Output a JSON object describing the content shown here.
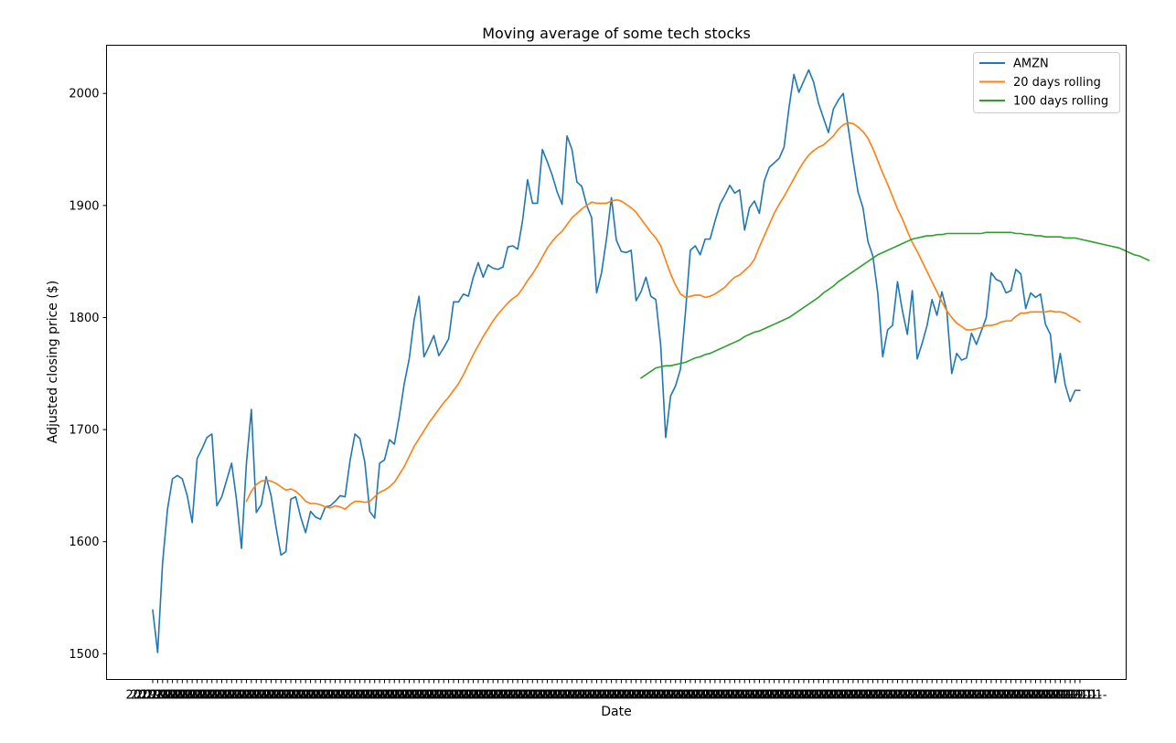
{
  "chart_data": {
    "type": "line",
    "title": "Moving average of some tech stocks",
    "xlabel": "Date",
    "ylabel": "Adjusted closing price ($)",
    "ylim": [
      1477,
      2043
    ],
    "yticks": [
      1500,
      1600,
      1700,
      1800,
      1900,
      2000
    ],
    "x_tick_label_sample": "2019-01-",
    "legend_position": "upper right",
    "grid": false,
    "series": [
      {
        "name": "AMZN",
        "color": "#1f77b4",
        "values": [
          1539,
          1501,
          1581,
          1629,
          1656,
          1659,
          1656,
          1641,
          1617,
          1674,
          1683,
          1693,
          1696,
          1632,
          1640,
          1655,
          1670,
          1637,
          1594,
          1670,
          1718,
          1626,
          1633,
          1658,
          1641,
          1613,
          1588,
          1591,
          1638,
          1640,
          1622,
          1608,
          1627,
          1622,
          1620,
          1631,
          1632,
          1636,
          1641,
          1640,
          1672,
          1696,
          1692,
          1671,
          1627,
          1621,
          1670,
          1673,
          1691,
          1687,
          1712,
          1741,
          1763,
          1798,
          1819,
          1765,
          1774,
          1784,
          1766,
          1773,
          1781,
          1814,
          1814,
          1821,
          1819,
          1836,
          1849,
          1836,
          1847,
          1844,
          1843,
          1845,
          1863,
          1864,
          1861,
          1887,
          1923,
          1902,
          1902,
          1950,
          1939,
          1927,
          1912,
          1901,
          1962,
          1950,
          1921,
          1917,
          1900,
          1889,
          1822,
          1840,
          1870,
          1907,
          1869,
          1859,
          1858,
          1860,
          1815,
          1823,
          1836,
          1819,
          1816,
          1775,
          1693,
          1730,
          1739,
          1754,
          1804,
          1860,
          1864,
          1856,
          1870,
          1870,
          1886,
          1901,
          1909,
          1918,
          1911,
          1914,
          1878,
          1898,
          1904,
          1893,
          1922,
          1934,
          1938,
          1942,
          1952,
          1987,
          2017,
          2001,
          2011,
          2021,
          2010,
          1991,
          1978,
          1965,
          1986,
          1994,
          2000,
          1970,
          1940,
          1912,
          1898,
          1868,
          1855,
          1822,
          1765,
          1789,
          1793,
          1832,
          1806,
          1785,
          1824,
          1763,
          1777,
          1793,
          1816,
          1802,
          1823,
          1806,
          1750,
          1768,
          1762,
          1764,
          1786,
          1776,
          1788,
          1800,
          1840,
          1834,
          1832,
          1822,
          1824,
          1843,
          1839,
          1808,
          1822,
          1818,
          1821,
          1794,
          1785,
          1742,
          1768,
          1740,
          1725,
          1735,
          1735
        ]
      },
      {
        "name": "20 days rolling",
        "color": "#ff7f0e",
        "values": [
          null,
          null,
          null,
          null,
          null,
          null,
          null,
          null,
          null,
          null,
          null,
          null,
          null,
          null,
          null,
          null,
          null,
          null,
          null,
          1636,
          1645,
          1651,
          1654,
          1655,
          1654,
          1652,
          1649,
          1646,
          1647,
          1645,
          1641,
          1636,
          1634,
          1634,
          1633,
          1631,
          1630,
          1632,
          1631,
          1629,
          1633,
          1636,
          1636,
          1635,
          1636,
          1640,
          1644,
          1646,
          1649,
          1653,
          1660,
          1667,
          1676,
          1685,
          1692,
          1699,
          1706,
          1712,
          1718,
          1724,
          1729,
          1735,
          1741,
          1749,
          1758,
          1767,
          1775,
          1783,
          1790,
          1797,
          1803,
          1808,
          1813,
          1817,
          1820,
          1826,
          1833,
          1839,
          1846,
          1854,
          1862,
          1868,
          1873,
          1877,
          1883,
          1889,
          1893,
          1897,
          1900,
          1903,
          1902,
          1902,
          1902,
          1904,
          1905,
          1904,
          1901,
          1898,
          1894,
          1888,
          1882,
          1876,
          1871,
          1864,
          1851,
          1839,
          1829,
          1821,
          1818,
          1819,
          1820,
          1820,
          1818,
          1819,
          1821,
          1824,
          1827,
          1832,
          1836,
          1838,
          1842,
          1846,
          1852,
          1863,
          1873,
          1883,
          1893,
          1901,
          1908,
          1916,
          1924,
          1932,
          1939,
          1945,
          1949,
          1952,
          1954,
          1958,
          1962,
          1968,
          1972,
          1974,
          1973,
          1970,
          1966,
          1960,
          1951,
          1940,
          1929,
          1919,
          1908,
          1897,
          1888,
          1877,
          1867,
          1859,
          1850,
          1841,
          1832,
          1823,
          1814,
          1806,
          1800,
          1795,
          1792,
          1789,
          1789,
          1790,
          1791,
          1793,
          1793,
          1794,
          1796,
          1797,
          1797,
          1801,
          1804,
          1804,
          1805,
          1805,
          1805,
          1805,
          1806,
          1805,
          1805,
          1804,
          1801,
          1799,
          1796
        ]
      },
      {
        "name": "100 days rolling",
        "color": "#2ca02c",
        "values": [
          null,
          null,
          null,
          null,
          null,
          null,
          null,
          null,
          null,
          null,
          null,
          null,
          null,
          null,
          null,
          null,
          null,
          null,
          null,
          null,
          null,
          null,
          null,
          null,
          null,
          null,
          null,
          null,
          null,
          null,
          null,
          null,
          null,
          null,
          null,
          null,
          null,
          null,
          null,
          null,
          null,
          null,
          null,
          null,
          null,
          null,
          null,
          null,
          null,
          null,
          null,
          null,
          null,
          null,
          null,
          null,
          null,
          null,
          null,
          null,
          null,
          null,
          null,
          null,
          null,
          null,
          null,
          null,
          null,
          null,
          null,
          null,
          null,
          null,
          null,
          null,
          null,
          null,
          null,
          null,
          null,
          null,
          null,
          null,
          null,
          null,
          null,
          null,
          null,
          null,
          null,
          null,
          null,
          null,
          null,
          null,
          null,
          null,
          null,
          1746,
          1749,
          1752,
          1755,
          1756,
          1757,
          1757,
          1758,
          1759,
          1760,
          1762,
          1764,
          1765,
          1767,
          1768,
          1770,
          1772,
          1774,
          1776,
          1778,
          1780,
          1783,
          1785,
          1787,
          1788,
          1790,
          1792,
          1794,
          1796,
          1798,
          1800,
          1803,
          1806,
          1809,
          1812,
          1815,
          1818,
          1822,
          1825,
          1828,
          1832,
          1835,
          1838,
          1841,
          1844,
          1847,
          1850,
          1853,
          1856,
          1858,
          1860,
          1862,
          1864,
          1866,
          1868,
          1870,
          1871,
          1872,
          1873,
          1873,
          1874,
          1874,
          1875,
          1875,
          1875,
          1875,
          1875,
          1875,
          1875,
          1875,
          1876,
          1876,
          1876,
          1876,
          1876,
          1876,
          1875,
          1875,
          1874,
          1874,
          1873,
          1873,
          1872,
          1872,
          1872,
          1872,
          1871,
          1871,
          1871,
          1870,
          1869,
          1868,
          1867,
          1866,
          1865,
          1864,
          1863,
          1862,
          1860,
          1858,
          1856,
          1855,
          1853,
          1851
        ]
      }
    ]
  }
}
